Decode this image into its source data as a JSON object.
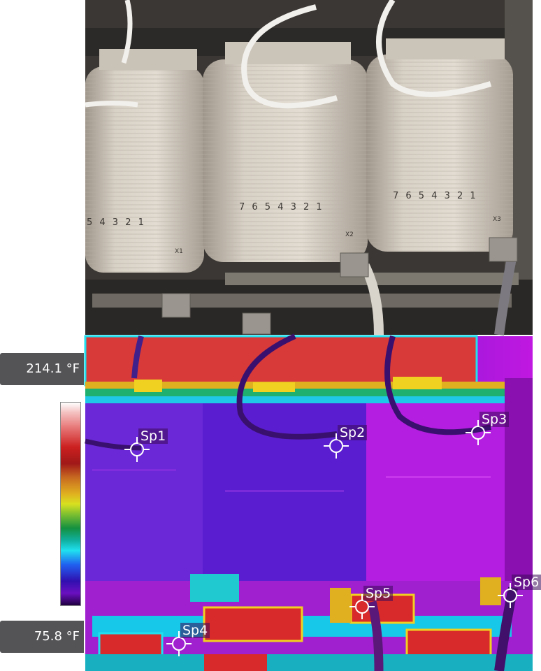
{
  "scale": {
    "max_label": "214.1 °F",
    "min_label": "75.8 °F",
    "palette": [
      "#ffffff",
      "#cc2020",
      "#e0b020",
      "#149040",
      "#20e0f0",
      "#2060f0",
      "#6a10c0",
      "#200040"
    ]
  },
  "photo": {
    "coil_markings": [
      "5 4 3 2 1",
      "7 6 5 4 3 2 1",
      "7 6 5 4 3 2 1"
    ],
    "coil_tags": [
      "X1",
      "X2",
      "X3"
    ]
  },
  "spots": [
    {
      "label": "Sp1"
    },
    {
      "label": "Sp2"
    },
    {
      "label": "Sp3"
    },
    {
      "label": "Sp4"
    },
    {
      "label": "Sp5"
    },
    {
      "label": "Sp6"
    }
  ],
  "colors": {
    "readout_bg": "#545457",
    "thermal_cold": "#7a14d0",
    "thermal_hot": "#cc2020"
  }
}
